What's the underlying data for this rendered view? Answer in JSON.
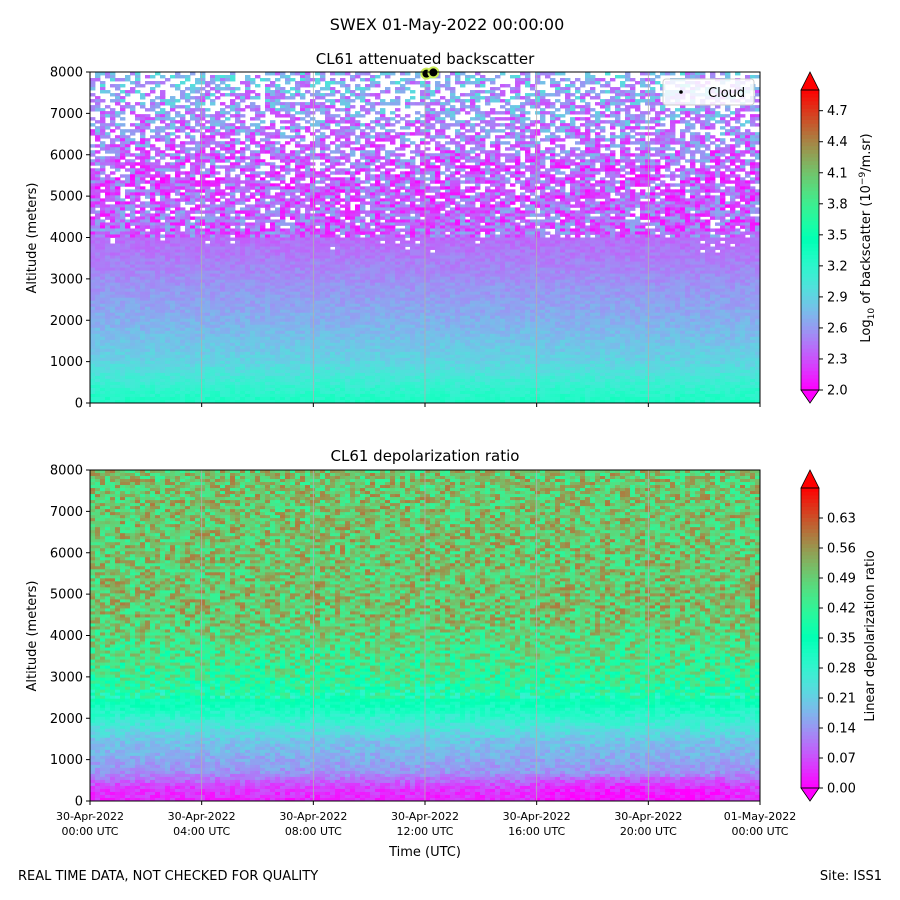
{
  "figure": {
    "suptitle": "SWEX 01-May-2022 00:00:00",
    "footer_left": "REAL TIME DATA, NOT CHECKED FOR QUALITY",
    "footer_right": "Site: ISS1",
    "colormap": "rainbow",
    "colors": {
      "grid": "#b0b0b0",
      "cloud_marker": "#000000",
      "cloud_outline": "#ccee55"
    }
  },
  "chart_data": [
    {
      "type": "heatmap",
      "title": "CL61 attenuated backscatter",
      "ylabel": "Altitude (meters)",
      "xlabel": "",
      "ylim": [
        0,
        8000
      ],
      "yticks": [
        0,
        1000,
        2000,
        3000,
        4000,
        5000,
        6000,
        7000,
        8000
      ],
      "ytick_labels": [
        "0",
        "1000",
        "2000",
        "3000",
        "4000",
        "5000",
        "6000",
        "7000",
        "8000"
      ],
      "x_range_hours": [
        0,
        24
      ],
      "grid": "vertical",
      "colorbar": {
        "label_main": "Log",
        "label_sub": "10",
        "label_mid": " of backscatter (10",
        "label_sup": "−9",
        "label_end": "/m.sr)",
        "range": [
          2.0,
          4.9
        ],
        "ticks": [
          2.0,
          2.3,
          2.6,
          2.9,
          3.2,
          3.5,
          3.8,
          4.1,
          4.4,
          4.7
        ],
        "tick_labels": [
          "2.0",
          "2.3",
          "2.6",
          "2.9",
          "3.2",
          "3.5",
          "3.8",
          "4.1",
          "4.4",
          "4.7"
        ],
        "extend": "both"
      },
      "legend": {
        "entries": [
          "Cloud"
        ],
        "placement": "top-right"
      },
      "cloud_hits": [
        {
          "hour": 12.05,
          "altitude": 7960
        },
        {
          "hour": 12.3,
          "altitude": 7990
        }
      ],
      "field_profile": [
        {
          "altitude": 0,
          "value": 3.3
        },
        {
          "altitude": 400,
          "value": 3.15
        },
        {
          "altitude": 1000,
          "value": 2.9
        },
        {
          "altitude": 2000,
          "value": 2.7
        },
        {
          "altitude": 3000,
          "value": 2.55
        },
        {
          "altitude": 4000,
          "value": 2.4
        },
        {
          "altitude": 5500,
          "value": 2.35
        },
        {
          "altitude": 8000,
          "value": 2.7
        }
      ]
    },
    {
      "type": "heatmap",
      "title": "CL61 depolarization ratio",
      "ylabel": "Altitude (meters)",
      "xlabel": "Time (UTC)",
      "ylim": [
        0,
        8000
      ],
      "yticks": [
        0,
        1000,
        2000,
        3000,
        4000,
        5000,
        6000,
        7000,
        8000
      ],
      "ytick_labels": [
        "0",
        "1000",
        "2000",
        "3000",
        "4000",
        "5000",
        "6000",
        "7000",
        "8000"
      ],
      "x_range_hours": [
        0,
        24
      ],
      "xticks_hours": [
        0,
        4,
        8,
        12,
        16,
        20,
        24
      ],
      "xtick_labels": [
        [
          "30-Apr-2022",
          "00:00 UTC"
        ],
        [
          "30-Apr-2022",
          "04:00 UTC"
        ],
        [
          "30-Apr-2022",
          "08:00 UTC"
        ],
        [
          "30-Apr-2022",
          "12:00 UTC"
        ],
        [
          "30-Apr-2022",
          "16:00 UTC"
        ],
        [
          "30-Apr-2022",
          "20:00 UTC"
        ],
        [
          "01-May-2022",
          "00:00 UTC"
        ]
      ],
      "grid": "vertical",
      "colorbar": {
        "label": "Linear depolarization ratio",
        "range": [
          0.0,
          0.7
        ],
        "ticks": [
          0.0,
          0.07,
          0.14,
          0.21,
          0.28,
          0.35,
          0.42,
          0.49,
          0.56,
          0.63
        ],
        "tick_labels": [
          "0.00",
          "0.07",
          "0.14",
          "0.21",
          "0.28",
          "0.35",
          "0.42",
          "0.49",
          "0.56",
          "0.63"
        ],
        "extend": "both"
      },
      "field_profile": [
        {
          "altitude": 0,
          "value": 0.03
        },
        {
          "altitude": 300,
          "value": 0.05
        },
        {
          "altitude": 700,
          "value": 0.14
        },
        {
          "altitude": 1500,
          "value": 0.2
        },
        {
          "altitude": 2300,
          "value": 0.33
        },
        {
          "altitude": 3000,
          "value": 0.42
        },
        {
          "altitude": 4500,
          "value": 0.5
        },
        {
          "altitude": 8000,
          "value": 0.5
        }
      ]
    }
  ]
}
